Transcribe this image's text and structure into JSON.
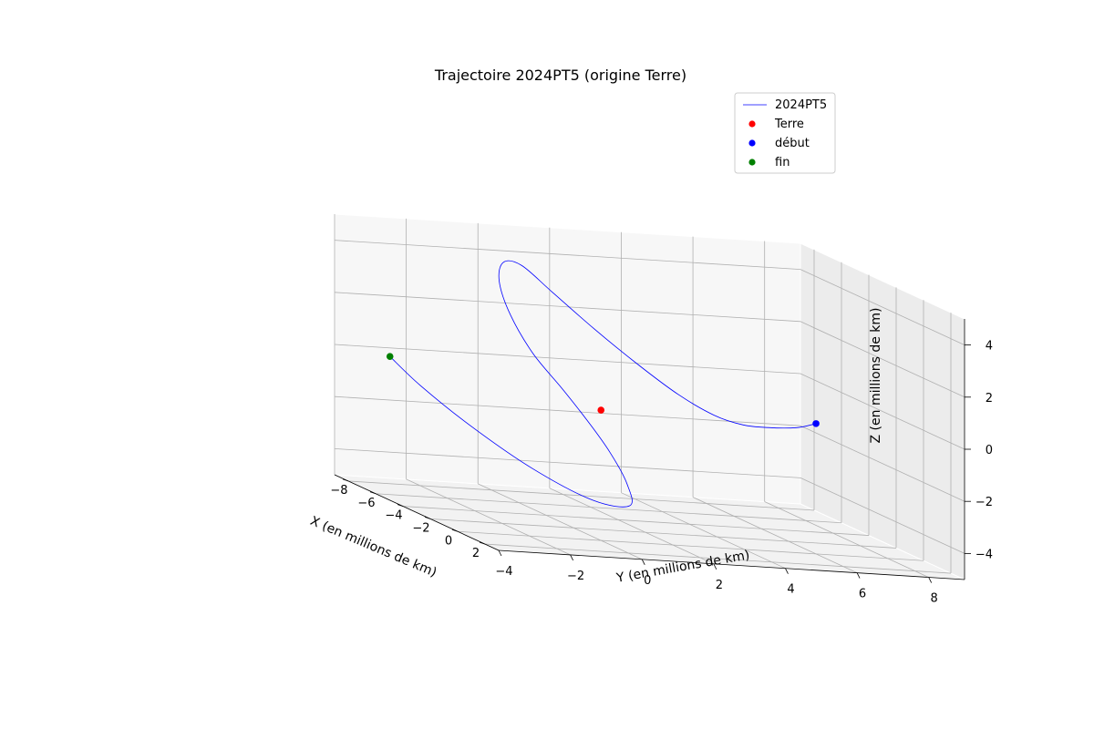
{
  "chart_data": {
    "type": "line",
    "title": "Trajectoire 2024PT5 (origine Terre)",
    "xlabel": "X (en millions de km)",
    "ylabel": "Y (en millions de km)",
    "zlabel": "Z (en millions de km)",
    "xlim": [
      -9,
      3
    ],
    "ylim": [
      -4,
      9
    ],
    "zlim": [
      -5,
      5
    ],
    "x_ticks": [
      -8,
      -6,
      -4,
      -2,
      0,
      2
    ],
    "y_ticks": [
      -4,
      -2,
      0,
      2,
      4,
      6,
      8
    ],
    "z_ticks": [
      -4,
      -2,
      0,
      2,
      4
    ],
    "x_tick_labels": [
      "−8",
      "−6",
      "−4",
      "−2",
      "0",
      "2"
    ],
    "y_tick_labels": [
      "−4",
      "−2",
      "0",
      "2",
      "4",
      "6",
      "8"
    ],
    "z_tick_labels": [
      "−4",
      "−2",
      "0",
      "2",
      "4"
    ],
    "grid": true,
    "legend_position": "top-right",
    "series": [
      {
        "name": "2024PT5",
        "kind": "line",
        "color": "#0000ff",
        "x": [
          0.0,
          1.2,
          2.0,
          2.5,
          2.5,
          2.0,
          1.0,
          -0.5,
          -2.0,
          -3.2,
          -4.0,
          -4.3,
          -4.0,
          -3.4,
          -2.6,
          -1.8,
          -0.9,
          -0.2,
          0.0,
          -0.6,
          -1.8,
          -3.2,
          -4.8,
          -6.0
        ],
        "y": [
          6.0,
          5.0,
          3.9,
          3.0,
          2.2,
          1.4,
          0.7,
          0.0,
          -0.6,
          -1.0,
          -1.2,
          -1.2,
          -1.0,
          -0.6,
          -0.1,
          0.3,
          0.6,
          0.8,
          0.8,
          0.0,
          -1.2,
          -2.4,
          -3.2,
          -3.6
        ],
        "z": [
          0.0,
          0.05,
          0.15,
          0.3,
          0.6,
          1.2,
          2.0,
          3.0,
          4.0,
          4.7,
          4.6,
          3.8,
          2.6,
          1.3,
          0.2,
          -0.8,
          -1.8,
          -2.8,
          -3.6,
          -3.6,
          -2.8,
          -1.6,
          -0.5,
          0.3
        ]
      },
      {
        "name": "Terre",
        "kind": "scatter",
        "color": "#ff0000",
        "x": [
          0
        ],
        "y": [
          0
        ],
        "z": [
          0
        ]
      },
      {
        "name": "début",
        "kind": "scatter",
        "color": "#0000ff",
        "x": [
          0.0
        ],
        "y": [
          6.0
        ],
        "z": [
          0.0
        ]
      },
      {
        "name": "fin",
        "kind": "scatter",
        "color": "#008000",
        "x": [
          -6.0
        ],
        "y": [
          -3.6
        ],
        "z": [
          0.3
        ]
      }
    ]
  }
}
